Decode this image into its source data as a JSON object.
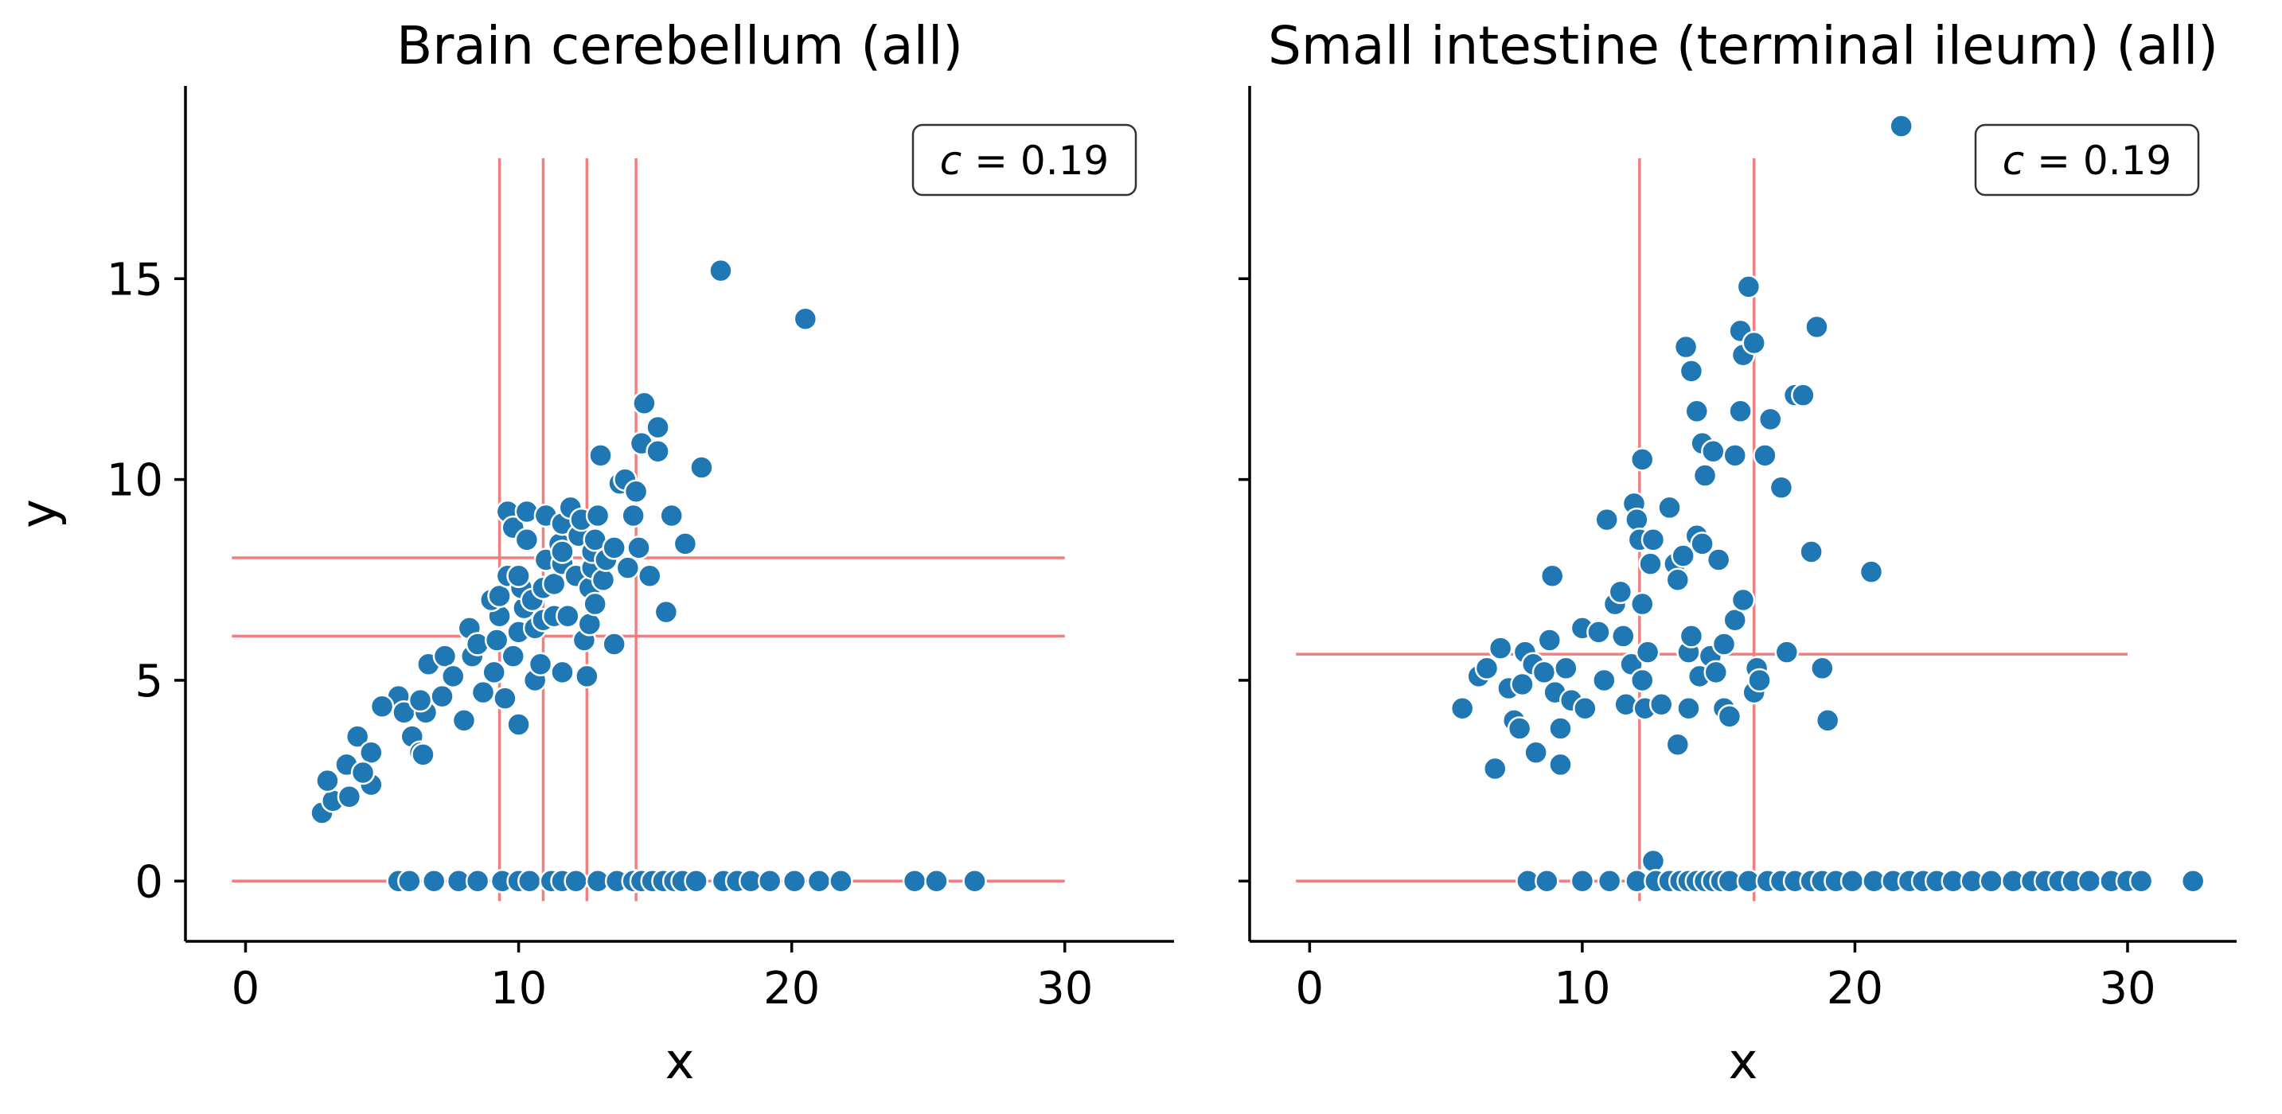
{
  "colors": {
    "points": "#1f77b4",
    "reference_lines": "#f08080",
    "annotation_border": "#333333"
  },
  "chart_data": [
    {
      "type": "scatter",
      "title": "Brain cerebellum (all)",
      "xlabel": "x",
      "ylabel": "y",
      "xlim": [
        -2.2,
        34
      ],
      "ylim": [
        -1.5,
        19.8
      ],
      "xticks": [
        "0",
        "10",
        "20",
        "30"
      ],
      "yticks": [
        "0",
        "5",
        "10",
        "15"
      ],
      "grid": false,
      "annotation": {
        "symbol": "c",
        "text": " = 0.19",
        "position": "top-right"
      },
      "reference_lines": {
        "vertical": [
          {
            "x": 9.3,
            "y_range": [
              -0.5,
              18
            ]
          },
          {
            "x": 10.9,
            "y_range": [
              -0.5,
              18
            ]
          },
          {
            "x": 12.5,
            "y_range": [
              -0.5,
              18
            ]
          },
          {
            "x": 14.3,
            "y_range": [
              -0.5,
              18
            ]
          }
        ],
        "horizontal": [
          {
            "y": 8.05,
            "x_range": [
              -0.5,
              30
            ]
          },
          {
            "y": 6.1,
            "x_range": [
              -0.5,
              30
            ]
          },
          {
            "y": 0.0,
            "x_range": [
              -0.5,
              30
            ]
          }
        ]
      },
      "points": [
        [
          2.8,
          1.7
        ],
        [
          3.2,
          2.0
        ],
        [
          3.0,
          2.5
        ],
        [
          3.8,
          2.1
        ],
        [
          3.7,
          2.9
        ],
        [
          4.1,
          3.6
        ],
        [
          4.6,
          3.2
        ],
        [
          4.6,
          2.4
        ],
        [
          4.3,
          2.7
        ],
        [
          5.6,
          4.6
        ],
        [
          5.8,
          4.2
        ],
        [
          5.0,
          4.35
        ],
        [
          6.1,
          3.6
        ],
        [
          6.4,
          3.2
        ],
        [
          6.6,
          4.2
        ],
        [
          6.4,
          4.5
        ],
        [
          6.7,
          5.4
        ],
        [
          6.5,
          3.15
        ],
        [
          7.3,
          5.6
        ],
        [
          7.2,
          4.6
        ],
        [
          7.6,
          5.1
        ],
        [
          8.0,
          4.0
        ],
        [
          8.3,
          5.6
        ],
        [
          8.2,
          6.3
        ],
        [
          8.5,
          5.9
        ],
        [
          8.7,
          4.7
        ],
        [
          9.1,
          5.2
        ],
        [
          9.2,
          6.0
        ],
        [
          9.3,
          6.6
        ],
        [
          9.5,
          4.55
        ],
        [
          9.0,
          7.0
        ],
        [
          9.3,
          7.1
        ],
        [
          9.6,
          7.6
        ],
        [
          9.6,
          9.2
        ],
        [
          9.8,
          8.8
        ],
        [
          10.0,
          3.9
        ],
        [
          10.2,
          6.8
        ],
        [
          10.1,
          7.3
        ],
        [
          10.3,
          9.2
        ],
        [
          10.3,
          8.5
        ],
        [
          9.8,
          5.6
        ],
        [
          10.0,
          6.2
        ],
        [
          10.0,
          7.6
        ],
        [
          10.5,
          7.0
        ],
        [
          10.6,
          6.3
        ],
        [
          10.9,
          6.5
        ],
        [
          10.9,
          7.3
        ],
        [
          11.0,
          8.0
        ],
        [
          11.0,
          9.1
        ],
        [
          10.6,
          5.0
        ],
        [
          10.8,
          5.4
        ],
        [
          11.3,
          6.6
        ],
        [
          11.3,
          7.4
        ],
        [
          11.5,
          8.4
        ],
        [
          11.6,
          5.2
        ],
        [
          11.8,
          6.6
        ],
        [
          11.6,
          7.9
        ],
        [
          11.6,
          8.2
        ],
        [
          11.6,
          8.9
        ],
        [
          11.9,
          9.3
        ],
        [
          12.1,
          7.6
        ],
        [
          12.2,
          8.6
        ],
        [
          12.3,
          9.0
        ],
        [
          12.4,
          6.0
        ],
        [
          12.5,
          5.1
        ],
        [
          12.6,
          6.4
        ],
        [
          12.6,
          7.3
        ],
        [
          12.7,
          7.8
        ],
        [
          12.7,
          8.2
        ],
        [
          12.8,
          8.5
        ],
        [
          12.9,
          9.1
        ],
        [
          13.0,
          10.6
        ],
        [
          12.8,
          6.9
        ],
        [
          13.1,
          7.5
        ],
        [
          13.2,
          8.0
        ],
        [
          13.5,
          8.3
        ],
        [
          13.7,
          9.9
        ],
        [
          13.9,
          10.0
        ],
        [
          14.0,
          7.8
        ],
        [
          14.2,
          9.1
        ],
        [
          14.3,
          9.7
        ],
        [
          13.5,
          5.9
        ],
        [
          14.4,
          8.3
        ],
        [
          14.6,
          11.9
        ],
        [
          14.5,
          10.9
        ],
        [
          14.8,
          7.6
        ],
        [
          15.1,
          11.3
        ],
        [
          15.1,
          10.7
        ],
        [
          15.4,
          6.7
        ],
        [
          15.6,
          9.1
        ],
        [
          16.1,
          8.4
        ],
        [
          16.7,
          10.3
        ],
        [
          17.4,
          15.2
        ],
        [
          20.5,
          14.0
        ],
        [
          5.6,
          0.0
        ],
        [
          6.0,
          0.0
        ],
        [
          6.9,
          0.0
        ],
        [
          7.8,
          0.0
        ],
        [
          8.5,
          0.0
        ],
        [
          9.4,
          0.0
        ],
        [
          10.0,
          0.0
        ],
        [
          10.4,
          0.0
        ],
        [
          11.2,
          0.0
        ],
        [
          11.6,
          0.0
        ],
        [
          12.1,
          0.0
        ],
        [
          12.9,
          0.0
        ],
        [
          13.6,
          0.0
        ],
        [
          14.2,
          0.0
        ],
        [
          14.5,
          0.0
        ],
        [
          14.9,
          0.0
        ],
        [
          15.3,
          0.0
        ],
        [
          15.7,
          0.0
        ],
        [
          16.0,
          0.0
        ],
        [
          16.5,
          0.0
        ],
        [
          17.5,
          0.0
        ],
        [
          18.0,
          0.0
        ],
        [
          18.5,
          0.0
        ],
        [
          19.2,
          0.0
        ],
        [
          20.1,
          0.0
        ],
        [
          21.0,
          0.0
        ],
        [
          21.8,
          0.0
        ],
        [
          24.5,
          0.0
        ],
        [
          25.3,
          0.0
        ],
        [
          26.7,
          0.0
        ]
      ]
    },
    {
      "type": "scatter",
      "title": "Small intestine (terminal ileum) (all)",
      "xlabel": "x",
      "ylabel": "",
      "xlim": [
        -2.2,
        34
      ],
      "ylim": [
        -1.5,
        19.8
      ],
      "xticks": [
        "0",
        "10",
        "20",
        "30"
      ],
      "yticks": [
        "",
        "",
        "",
        ""
      ],
      "grid": false,
      "annotation": {
        "symbol": "c",
        "text": " = 0.19",
        "position": "top-right"
      },
      "reference_lines": {
        "vertical": [
          {
            "x": 12.1,
            "y_range": [
              -0.5,
              18
            ]
          },
          {
            "x": 16.3,
            "y_range": [
              -0.5,
              18
            ]
          }
        ],
        "horizontal": [
          {
            "y": 5.65,
            "x_range": [
              -0.5,
              30
            ]
          },
          {
            "y": 0.0,
            "x_range": [
              -0.5,
              30
            ]
          }
        ]
      },
      "points": [
        [
          5.6,
          4.3
        ],
        [
          6.2,
          5.1
        ],
        [
          6.8,
          2.8
        ],
        [
          6.5,
          5.3
        ],
        [
          7.0,
          5.8
        ],
        [
          7.3,
          4.8
        ],
        [
          7.5,
          4.0
        ],
        [
          7.7,
          3.8
        ],
        [
          7.8,
          4.9
        ],
        [
          7.9,
          5.7
        ],
        [
          8.3,
          3.2
        ],
        [
          8.2,
          5.4
        ],
        [
          8.6,
          5.2
        ],
        [
          8.8,
          6.0
        ],
        [
          8.9,
          7.6
        ],
        [
          9.0,
          4.7
        ],
        [
          9.2,
          2.9
        ],
        [
          9.2,
          3.8
        ],
        [
          9.4,
          5.3
        ],
        [
          9.6,
          4.5
        ],
        [
          10.0,
          6.3
        ],
        [
          10.1,
          4.3
        ],
        [
          10.6,
          6.2
        ],
        [
          10.8,
          5.0
        ],
        [
          10.9,
          9.0
        ],
        [
          11.2,
          6.9
        ],
        [
          11.4,
          7.2
        ],
        [
          11.5,
          6.1
        ],
        [
          11.6,
          4.4
        ],
        [
          11.8,
          5.4
        ],
        [
          11.9,
          9.4
        ],
        [
          12.0,
          9.0
        ],
        [
          12.1,
          8.5
        ],
        [
          12.2,
          10.5
        ],
        [
          12.3,
          4.3
        ],
        [
          12.2,
          5.0
        ],
        [
          12.2,
          6.9
        ],
        [
          12.4,
          5.7
        ],
        [
          12.5,
          7.9
        ],
        [
          12.6,
          8.5
        ],
        [
          12.9,
          4.4
        ],
        [
          13.2,
          9.3
        ],
        [
          13.4,
          7.9
        ],
        [
          13.5,
          3.4
        ],
        [
          13.5,
          7.5
        ],
        [
          13.7,
          8.1
        ],
        [
          13.8,
          13.3
        ],
        [
          13.9,
          4.3
        ],
        [
          13.9,
          5.7
        ],
        [
          14.0,
          6.1
        ],
        [
          14.0,
          12.7
        ],
        [
          14.2,
          8.6
        ],
        [
          14.2,
          11.7
        ],
        [
          14.3,
          5.1
        ],
        [
          14.4,
          8.4
        ],
        [
          14.4,
          10.9
        ],
        [
          14.5,
          10.1
        ],
        [
          14.7,
          5.6
        ],
        [
          14.8,
          10.7
        ],
        [
          14.9,
          5.2
        ],
        [
          15.0,
          8.0
        ],
        [
          15.2,
          4.3
        ],
        [
          15.2,
          5.9
        ],
        [
          15.4,
          4.1
        ],
        [
          15.6,
          10.6
        ],
        [
          15.6,
          6.5
        ],
        [
          15.8,
          11.7
        ],
        [
          15.8,
          13.7
        ],
        [
          15.9,
          13.1
        ],
        [
          15.9,
          7.0
        ],
        [
          16.1,
          14.8
        ],
        [
          16.3,
          13.4
        ],
        [
          16.4,
          5.3
        ],
        [
          16.3,
          4.7
        ],
        [
          16.5,
          5.0
        ],
        [
          16.7,
          10.6
        ],
        [
          16.9,
          11.5
        ],
        [
          17.3,
          9.8
        ],
        [
          17.5,
          5.7
        ],
        [
          17.8,
          12.1
        ],
        [
          18.1,
          12.1
        ],
        [
          18.4,
          8.2
        ],
        [
          18.6,
          13.8
        ],
        [
          18.8,
          5.3
        ],
        [
          19.0,
          4.0
        ],
        [
          20.6,
          7.7
        ],
        [
          21.7,
          18.8
        ],
        [
          12.6,
          0.5
        ],
        [
          8.0,
          0.0
        ],
        [
          8.7,
          0.0
        ],
        [
          10.0,
          0.0
        ],
        [
          11.0,
          0.0
        ],
        [
          12.0,
          0.0
        ],
        [
          12.7,
          0.0
        ],
        [
          13.2,
          0.0
        ],
        [
          13.6,
          0.0
        ],
        [
          13.9,
          0.0
        ],
        [
          14.2,
          0.0
        ],
        [
          14.5,
          0.0
        ],
        [
          14.8,
          0.0
        ],
        [
          15.1,
          0.0
        ],
        [
          15.4,
          0.0
        ],
        [
          16.1,
          0.0
        ],
        [
          16.8,
          0.0
        ],
        [
          17.3,
          0.0
        ],
        [
          17.8,
          0.0
        ],
        [
          18.4,
          0.0
        ],
        [
          18.8,
          0.0
        ],
        [
          19.3,
          0.0
        ],
        [
          19.9,
          0.0
        ],
        [
          20.7,
          0.0
        ],
        [
          21.4,
          0.0
        ],
        [
          22.0,
          0.0
        ],
        [
          22.5,
          0.0
        ],
        [
          23.0,
          0.0
        ],
        [
          23.6,
          0.0
        ],
        [
          24.3,
          0.0
        ],
        [
          25.0,
          0.0
        ],
        [
          25.8,
          0.0
        ],
        [
          26.5,
          0.0
        ],
        [
          27.0,
          0.0
        ],
        [
          27.5,
          0.0
        ],
        [
          28.0,
          0.0
        ],
        [
          28.6,
          0.0
        ],
        [
          29.4,
          0.0
        ],
        [
          30.0,
          0.0
        ],
        [
          30.5,
          0.0
        ],
        [
          32.4,
          0.0
        ]
      ]
    }
  ]
}
